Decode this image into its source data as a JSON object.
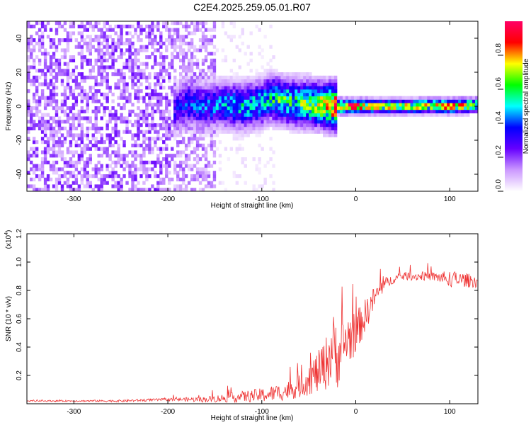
{
  "title": "C2E4.2025.259.05.01.R07",
  "chart_data": [
    {
      "type": "heatmap",
      "title": "C2E4.2025.259.05.01.R07",
      "xlabel": "Height of straight line (km)",
      "ylabel": "Frequency (Hz)",
      "xlim": [
        -350,
        130
      ],
      "ylim": [
        -50,
        50
      ],
      "xticks": [
        -300,
        -200,
        -100,
        0,
        100
      ],
      "yticks": [
        -40,
        -20,
        0,
        20,
        40
      ],
      "description_regions": [
        {
          "x_from": -350,
          "x_to": -195,
          "freq_from": -50,
          "freq_to": 50,
          "amplitude": 0.15
        },
        {
          "x_from": -195,
          "x_to": -150,
          "freq_from": -50,
          "freq_to": 50,
          "amplitude": 0.12
        },
        {
          "x_from": -150,
          "x_to": -85,
          "freq_from": -50,
          "freq_to": 50,
          "amplitude": 0.03
        },
        {
          "x_from": -195,
          "x_to": -20,
          "freq_from": -8,
          "freq_to": 10,
          "amplitude": 0.35
        },
        {
          "x_from": -20,
          "x_to": 130,
          "freq_from": -3,
          "freq_to": 3,
          "amplitude": 0.65
        }
      ],
      "ridge": {
        "x": [
          -195,
          -180,
          -160,
          -140,
          -120,
          -100,
          -90,
          -80,
          -60,
          -40,
          -25,
          -20,
          -10,
          0,
          20,
          40,
          60,
          80,
          100,
          120,
          130
        ],
        "freq": [
          -3,
          2,
          0,
          1,
          0,
          2,
          5,
          3,
          2,
          1,
          0,
          0,
          0,
          0,
          0,
          0,
          0,
          0.5,
          0,
          0.5,
          0.5
        ],
        "amplitude": [
          0.3,
          0.4,
          0.4,
          0.45,
          0.5,
          0.5,
          0.55,
          0.6,
          0.6,
          0.7,
          0.85,
          0.9,
          0.85,
          0.9,
          0.75,
          0.7,
          0.7,
          0.75,
          0.8,
          0.75,
          0.7
        ]
      },
      "colorbar": {
        "label": "Normalized spectral amplitude",
        "range": [
          0,
          1
        ],
        "ticks": [
          0.0,
          0.2,
          0.4,
          0.6,
          0.8
        ],
        "colors": [
          "#ffffff",
          "#cc99ff",
          "#6600ff",
          "#0000ff",
          "#00ffff",
          "#00ff00",
          "#ffff00",
          "#ff0000",
          "#ff0066"
        ]
      }
    },
    {
      "type": "line",
      "xlabel": "Height of straight line (km)",
      "ylabel": "SNR (10 * v/v)",
      "multiplier": "(x10",
      "multiplier_exp": "4",
      "xlim": [
        -350,
        130
      ],
      "ylim": [
        0,
        1.2
      ],
      "xticks": [
        -300,
        -200,
        -100,
        0,
        100
      ],
      "yticks": [
        0.2,
        0.4,
        0.6,
        0.8,
        1.0,
        1.2
      ],
      "series": [
        {
          "name": "SNR",
          "color": "#ee3333",
          "x": [
            -350,
            -300,
            -250,
            -200,
            -180,
            -160,
            -140,
            -120,
            -100,
            -80,
            -60,
            -50,
            -40,
            -30,
            -25,
            -20,
            -15,
            -10,
            0,
            10,
            20,
            30,
            40,
            50,
            60,
            70,
            80,
            90,
            100,
            110,
            120,
            130
          ],
          "y": [
            0.02,
            0.02,
            0.02,
            0.03,
            0.03,
            0.03,
            0.04,
            0.05,
            0.06,
            0.08,
            0.12,
            0.18,
            0.22,
            0.3,
            0.4,
            0.35,
            0.38,
            0.45,
            0.5,
            0.62,
            0.75,
            0.84,
            0.88,
            0.9,
            0.9,
            0.9,
            0.9,
            0.89,
            0.88,
            0.88,
            0.87,
            0.86
          ],
          "noise": [
            0.005,
            0.005,
            0.008,
            0.01,
            0.015,
            0.02,
            0.03,
            0.04,
            0.05,
            0.06,
            0.08,
            0.12,
            0.15,
            0.2,
            0.25,
            0.25,
            0.2,
            0.2,
            0.15,
            0.12,
            0.08,
            0.05,
            0.03,
            0.03,
            0.03,
            0.03,
            0.03,
            0.04,
            0.06,
            0.05,
            0.05,
            0.04
          ]
        }
      ]
    }
  ]
}
